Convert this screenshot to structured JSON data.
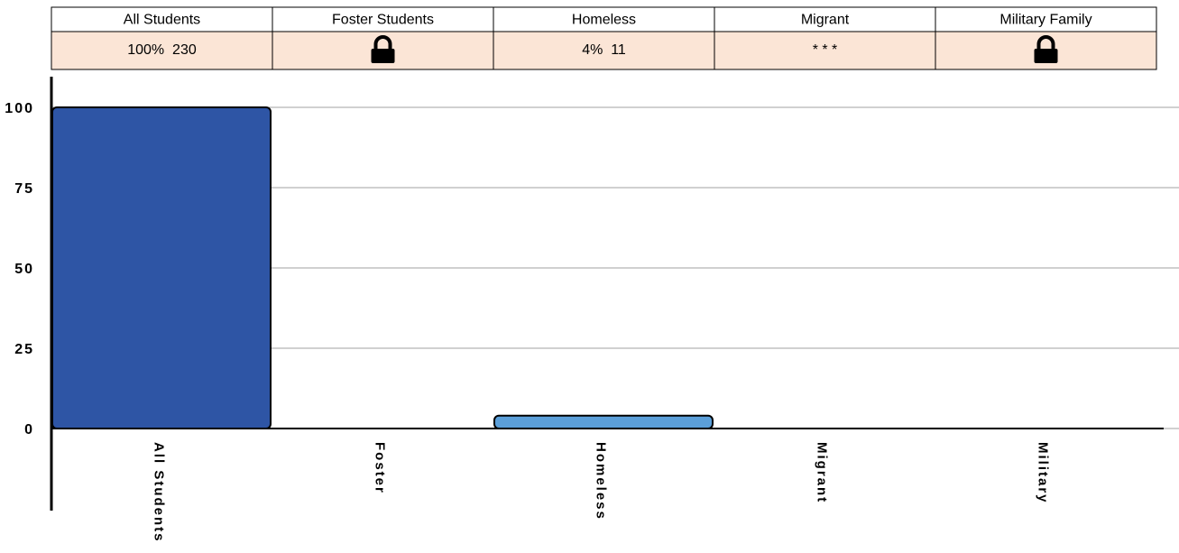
{
  "table": {
    "headers": [
      "All Students",
      "Foster Students",
      "Homeless",
      "Migrant",
      "Military Family"
    ],
    "cells": [
      "100%  230",
      null,
      "4%  11",
      "* * *",
      null
    ]
  },
  "chart_data": {
    "type": "bar",
    "categories": [
      "All Students",
      "Foster",
      "Homeless",
      "Migrant",
      "Military"
    ],
    "values": [
      100,
      null,
      4,
      null,
      null
    ],
    "colors": [
      "#2e55a5",
      "#2e55a5",
      "#5b9fd9",
      "#5b9fd9",
      "#5b9fd9"
    ],
    "ylim": [
      0,
      100
    ],
    "yticks": [
      0,
      25,
      50,
      75,
      100
    ],
    "grid": true
  }
}
